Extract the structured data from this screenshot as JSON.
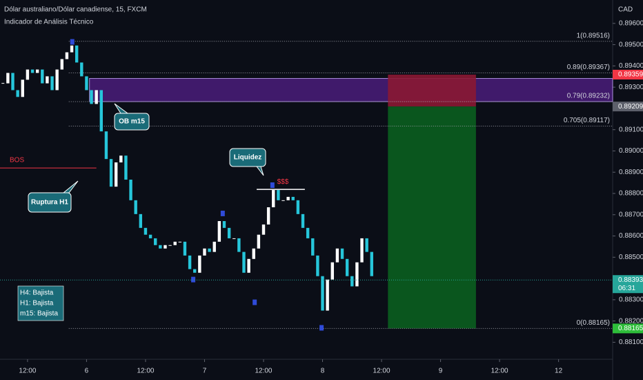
{
  "chart_data": {
    "type": "candlestick",
    "title": "Dólar australiano/Dólar canadiense, 15, FXCM",
    "subtitle": "Indicador de Análisis Técnico",
    "currency": "CAD",
    "x": [
      -5,
      -4,
      -3,
      -2,
      -1,
      0,
      1,
      2,
      3,
      4,
      5,
      6,
      7,
      8,
      9,
      10,
      11,
      12,
      13,
      14,
      15,
      16,
      17,
      18,
      19,
      20,
      21,
      22,
      23,
      24,
      25,
      26,
      27,
      28,
      29,
      30,
      31,
      32,
      33,
      34,
      35,
      36,
      37,
      38,
      39,
      40,
      41,
      42,
      43,
      44,
      45,
      46,
      47,
      48,
      49,
      50,
      51,
      52,
      53,
      54,
      55,
      56,
      57,
      58,
      59,
      60,
      61,
      62,
      63,
      64,
      65,
      66,
      67,
      68,
      69,
      70
    ],
    "close": [
      0.89318,
      0.89367,
      0.89286,
      0.89254,
      0.89335,
      0.89383,
      0.89367,
      0.89383,
      0.89318,
      0.89351,
      0.89286,
      0.89383,
      0.89432,
      0.89464,
      0.89496,
      0.89416,
      0.89351,
      0.89286,
      0.89221,
      0.89286,
      0.89092,
      0.88962,
      0.88832,
      0.88946,
      0.88978,
      0.88865,
      0.88768,
      0.88703,
      0.88638,
      0.88606,
      0.88589,
      0.88557,
      0.88541,
      0.88557,
      0.88557,
      0.88573,
      0.88573,
      0.88508,
      0.88444,
      0.88427,
      0.88508,
      0.88541,
      0.88525,
      0.88573,
      0.8867,
      0.88638,
      0.88589,
      0.88589,
      0.88525,
      0.88427,
      0.88492,
      0.88541,
      0.88606,
      0.88654,
      0.88735,
      0.88816,
      0.88768,
      0.88768,
      0.88784,
      0.88768,
      0.88703,
      0.88638,
      0.88589,
      0.88508,
      0.88411,
      0.88249,
      0.88395,
      0.88476,
      0.88541,
      0.88492,
      0.88411,
      0.88363,
      0.88476,
      0.88589,
      0.88525,
      0.88411
    ],
    "up_color": "#ffffff",
    "down_color": "#26c6da",
    "xlim": [
      -5.6,
      119
    ],
    "xticks": [
      {
        "value": 0,
        "label": "12:00"
      },
      {
        "value": 12,
        "label": "6"
      },
      {
        "value": 24,
        "label": "12:00"
      },
      {
        "value": 36,
        "label": "7"
      },
      {
        "value": 48,
        "label": "12:00"
      },
      {
        "value": 60,
        "label": "8"
      },
      {
        "value": 72,
        "label": "12:00"
      },
      {
        "value": 84,
        "label": "9"
      },
      {
        "value": 96,
        "label": "12:00"
      },
      {
        "value": 108,
        "label": "12"
      }
    ],
    "ylim": [
      0.8802,
      0.8971
    ],
    "yticks": [
      {
        "value": 0.896,
        "label": "0.89600"
      },
      {
        "value": 0.895,
        "label": "0.89500"
      },
      {
        "value": 0.894,
        "label": "0.89400"
      },
      {
        "value": 0.893,
        "label": "0.89300"
      },
      {
        "value": 0.892,
        "label": "0.89200"
      },
      {
        "value": 0.891,
        "label": "0.89100"
      },
      {
        "value": 0.89,
        "label": "0.89000"
      },
      {
        "value": 0.889,
        "label": "0.88900"
      },
      {
        "value": 0.888,
        "label": "0.88800"
      },
      {
        "value": 0.887,
        "label": "0.88700"
      },
      {
        "value": 0.886,
        "label": "0.88600"
      },
      {
        "value": 0.885,
        "label": "0.88500"
      },
      {
        "value": 0.884,
        "label": "0.88400"
      },
      {
        "value": 0.883,
        "label": "0.88300"
      },
      {
        "value": 0.882,
        "label": "0.88200"
      },
      {
        "value": 0.881,
        "label": "0.88100"
      }
    ],
    "fib_start": 8.4,
    "fib_levels": [
      {
        "value": 0.89516,
        "label": "1(0.89516)"
      },
      {
        "value": 0.89367,
        "label": "0.89(0.89367)"
      },
      {
        "value": 0.89232,
        "label": "0.79(0.89232)"
      },
      {
        "value": 0.89117,
        "label": "0.705(0.89117)"
      },
      {
        "value": 0.88165,
        "label": "0(0.88165)"
      }
    ],
    "zone": {
      "x": [
        12.6,
        119
      ],
      "from": 0.89232,
      "to": 0.89341,
      "color": "#4a1d7a"
    },
    "position": {
      "x": [
        73.3,
        91.2
      ],
      "stop": 0.89359,
      "entry": 0.89209,
      "target": 0.88165,
      "stop_color": "#8a1833",
      "target_color": "#0a5e1f"
    },
    "price_labels": [
      {
        "value": 0.89359,
        "label": "0.89359",
        "color": "#f23645"
      },
      {
        "value": 0.89209,
        "label": "0.89209",
        "color": "#5d606b"
      },
      {
        "value": 0.88393,
        "label": "0.88393",
        "countdown": "06:31",
        "color": "#26a69a",
        "line": true
      },
      {
        "value": 0.88165,
        "label": "0.88165",
        "color": "#2ebd3a"
      }
    ],
    "bos": {
      "label": "BOS",
      "value": 0.8892,
      "x": [
        -5.6,
        14
      ],
      "color": "#f23645"
    },
    "liquidity": {
      "label": "$$$",
      "value": 0.88819,
      "x": [
        46.6,
        56.4
      ],
      "color": "#f23645"
    },
    "annotations": [
      "OB m15",
      "Liquidez",
      "Ruptura H1"
    ],
    "trend": [
      "H4: Bajista",
      "H1: Bajista",
      "m15: Bajista"
    ],
    "pivots": [
      {
        "x": 9.1,
        "value": 0.89513
      },
      {
        "x": 39.7,
        "value": 0.88706
      },
      {
        "x": 33.7,
        "value": 0.88395
      },
      {
        "x": 46.2,
        "value": 0.88288
      },
      {
        "x": 59.8,
        "value": 0.88168
      },
      {
        "x": 49.8,
        "value": 0.88839
      }
    ],
    "pivot_color": "#2f4bd8"
  }
}
